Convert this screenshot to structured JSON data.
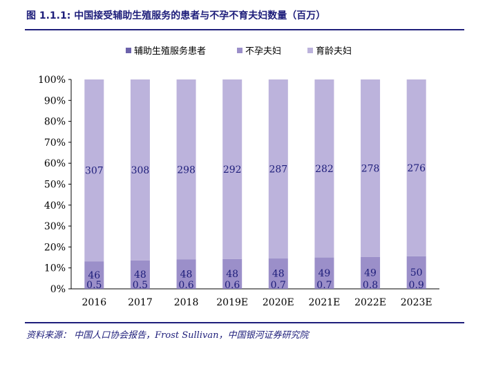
{
  "header": {
    "title": "图 1.1.1:  中国接受辅助生殖服务的患者与不孕不育夫妇数量（百万）"
  },
  "footer": {
    "source": "资料来源：  中国人口协会报告，Frost Sullivan，中国银河证券研究院"
  },
  "colors": {
    "accent": "#1d1d7a",
    "series_art": "#6c62ab",
    "series_infertile": "#9b8fc9",
    "series_childbearing": "#bcb3dc"
  },
  "chart_data": {
    "type": "bar",
    "stacking": "percent",
    "categories": [
      "2016",
      "2017",
      "2018",
      "2019E",
      "2020E",
      "2021E",
      "2022E",
      "2023E"
    ],
    "series": [
      {
        "name": "辅助生殖服务患者",
        "values": [
          0.5,
          0.5,
          0.6,
          0.6,
          0.7,
          0.7,
          0.8,
          0.9
        ],
        "labels": [
          "0.5",
          "0.5",
          "0.6",
          "0.6",
          "0.7",
          "0.7",
          "0.8",
          "0.9"
        ]
      },
      {
        "name": "不孕夫妇",
        "values": [
          46,
          48,
          48,
          48,
          48,
          49,
          49,
          50
        ],
        "labels": [
          "46",
          "48",
          "48",
          "48",
          "48",
          "49",
          "49",
          "50"
        ]
      },
      {
        "name": "育龄夫妇",
        "values": [
          307,
          308,
          298,
          292,
          287,
          282,
          278,
          276
        ],
        "labels": [
          "307",
          "308",
          "298",
          "292",
          "287",
          "282",
          "278",
          "276"
        ]
      }
    ],
    "yticks": [
      "0%",
      "10%",
      "20%",
      "30%",
      "40%",
      "50%",
      "60%",
      "70%",
      "80%",
      "90%",
      "100%"
    ],
    "ylim": [
      0,
      100
    ],
    "legend_position": "top",
    "grid": false
  }
}
